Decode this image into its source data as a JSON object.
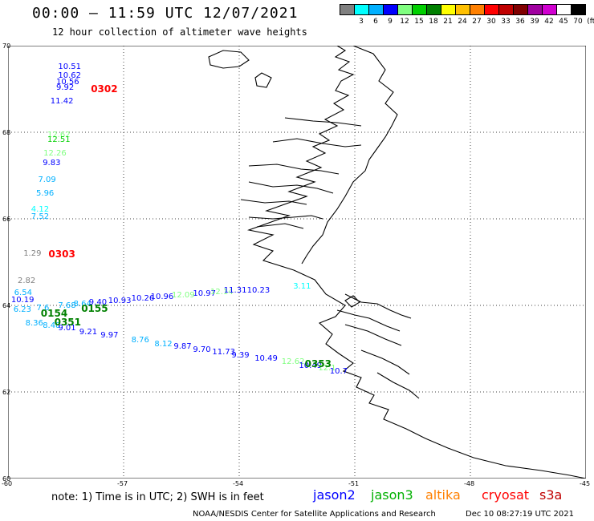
{
  "header": {
    "title": "00:00 – 11:59 UTC 12/07/2021",
    "subtitle": "12 hour collection of altimeter wave heights"
  },
  "scale": {
    "colors": [
      "#808080",
      "#00ffff",
      "#00b0ff",
      "#0000ff",
      "#80ff80",
      "#00d000",
      "#008000",
      "#ffff00",
      "#ffc000",
      "#ff8000",
      "#ff0000",
      "#c00000",
      "#800000",
      "#a000a0",
      "#d000d0",
      "#ffffff",
      "#000000"
    ],
    "labels": [
      "3",
      "6",
      "9",
      "12",
      "15",
      "18",
      "21",
      "24",
      "27",
      "30",
      "33",
      "36",
      "39",
      "42",
      "45",
      "70",
      "(ft)"
    ]
  },
  "map": {
    "lat_ticks": [
      "70",
      "68",
      "66",
      "64",
      "62",
      "60"
    ],
    "lon_ticks": [
      "-60",
      "-57",
      "-54",
      "-51",
      "-48",
      "-45"
    ],
    "extent": {
      "lon": [
        -60,
        -45
      ],
      "lat": [
        60,
        70
      ]
    }
  },
  "observations": [
    {
      "v": "10.51",
      "c": "#0000ff",
      "lon": -58.7,
      "lat": 69.5
    },
    {
      "v": "10.62",
      "c": "#0000ff",
      "lon": -58.7,
      "lat": 69.3
    },
    {
      "v": "10.56",
      "c": "#0000ff",
      "lon": -58.75,
      "lat": 69.15
    },
    {
      "v": "9.92",
      "c": "#0000ff",
      "lon": -58.75,
      "lat": 69.02
    },
    {
      "v": "11.42",
      "c": "#0000ff",
      "lon": -58.9,
      "lat": 68.7
    },
    {
      "v": "12.62",
      "c": "#80ff80",
      "lon": -58.98,
      "lat": 67.92
    },
    {
      "v": "12.51",
      "c": "#00d000",
      "lon": -58.98,
      "lat": 67.82
    },
    {
      "v": "12.26",
      "c": "#80ff80",
      "lon": -59.08,
      "lat": 67.5
    },
    {
      "v": "9.83",
      "c": "#0000ff",
      "lon": -59.1,
      "lat": 67.27
    },
    {
      "v": "7.09",
      "c": "#00b0ff",
      "lon": -59.22,
      "lat": 66.88
    },
    {
      "v": "5.96",
      "c": "#00b0ff",
      "lon": -59.27,
      "lat": 66.57
    },
    {
      "v": "4.12",
      "c": "#00ffff",
      "lon": -59.4,
      "lat": 66.2
    },
    {
      "v": "7.52",
      "c": "#00b0ff",
      "lon": -59.4,
      "lat": 66.03
    },
    {
      "v": "1.29",
      "c": "#808080",
      "lon": -59.6,
      "lat": 65.18
    },
    {
      "v": "2.82",
      "c": "#808080",
      "lon": -59.75,
      "lat": 64.55
    },
    {
      "v": "6.54",
      "c": "#00b0ff",
      "lon": -59.84,
      "lat": 64.28
    },
    {
      "v": "10.19",
      "c": "#0000ff",
      "lon": -59.92,
      "lat": 64.12
    },
    {
      "v": "6.23",
      "c": "#00b0ff",
      "lon": -59.86,
      "lat": 63.88
    },
    {
      "v": "7.6",
      "c": "#00b0ff",
      "lon": -59.26,
      "lat": 63.92
    },
    {
      "v": "7.68",
      "c": "#00b0ff",
      "lon": -58.7,
      "lat": 63.98
    },
    {
      "v": "8.64",
      "c": "#00b0ff",
      "lon": -58.3,
      "lat": 64.02
    },
    {
      "v": "9.40",
      "c": "#0000ff",
      "lon": -57.9,
      "lat": 64.06
    },
    {
      "v": "10.93",
      "c": "#0000ff",
      "lon": -57.4,
      "lat": 64.1
    },
    {
      "v": "10.26",
      "c": "#0000ff",
      "lon": -56.8,
      "lat": 64.14
    },
    {
      "v": "10.96",
      "c": "#0000ff",
      "lon": -56.3,
      "lat": 64.18
    },
    {
      "v": "12.09",
      "c": "#80ff80",
      "lon": -55.75,
      "lat": 64.22
    },
    {
      "v": "10.97",
      "c": "#0000ff",
      "lon": -55.2,
      "lat": 64.26
    },
    {
      "v": "12.14",
      "c": "#80ff80",
      "lon": -54.75,
      "lat": 64.3
    },
    {
      "v": "11.31",
      "c": "#0000ff",
      "lon": -54.4,
      "lat": 64.34
    },
    {
      "v": "10.23",
      "c": "#0000ff",
      "lon": -53.8,
      "lat": 64.34
    },
    {
      "v": "3.11",
      "c": "#00ffff",
      "lon": -52.6,
      "lat": 64.42
    },
    {
      "v": "8.36",
      "c": "#00b0ff",
      "lon": -59.55,
      "lat": 63.57
    },
    {
      "v": "8.48",
      "c": "#00b0ff",
      "lon": -59.1,
      "lat": 63.52
    },
    {
      "v": "9.01",
      "c": "#0000ff",
      "lon": -58.7,
      "lat": 63.46
    },
    {
      "v": "9.21",
      "c": "#0000ff",
      "lon": -58.15,
      "lat": 63.37
    },
    {
      "v": "9.97",
      "c": "#0000ff",
      "lon": -57.6,
      "lat": 63.3
    },
    {
      "v": "8.76",
      "c": "#00b0ff",
      "lon": -56.8,
      "lat": 63.18
    },
    {
      "v": "8.12",
      "c": "#00b0ff",
      "lon": -56.2,
      "lat": 63.1
    },
    {
      "v": "9.87",
      "c": "#0000ff",
      "lon": -55.7,
      "lat": 63.03
    },
    {
      "v": "9.70",
      "c": "#0000ff",
      "lon": -55.2,
      "lat": 62.97
    },
    {
      "v": "11.73",
      "c": "#0000ff",
      "lon": -54.7,
      "lat": 62.9
    },
    {
      "v": "9.39",
      "c": "#0000ff",
      "lon": -54.2,
      "lat": 62.84
    },
    {
      "v": "10.49",
      "c": "#0000ff",
      "lon": -53.6,
      "lat": 62.76
    },
    {
      "v": "12.62",
      "c": "#80ff80",
      "lon": -52.9,
      "lat": 62.68
    },
    {
      "v": "10.49",
      "c": "#0000ff",
      "lon": -52.45,
      "lat": 62.6
    },
    {
      "v": "12.1",
      "c": "#80ff80",
      "lon": -51.95,
      "lat": 62.54
    },
    {
      "v": "10.7",
      "c": "#0000ff",
      "lon": -51.65,
      "lat": 62.47
    }
  ],
  "passes": [
    {
      "id": "0302",
      "c": "#ff0000",
      "lon": -57.85,
      "lat": 69.0
    },
    {
      "id": "0303",
      "c": "#ff0000",
      "lon": -58.95,
      "lat": 65.18
    },
    {
      "id": "0154",
      "c": "#008000",
      "lon": -59.15,
      "lat": 63.82
    },
    {
      "id": "0155",
      "c": "#008000",
      "lon": -58.1,
      "lat": 63.93
    },
    {
      "id": "0351",
      "c": "#008000",
      "lon": -58.8,
      "lat": 63.61
    },
    {
      "id": "0353",
      "c": "#008000",
      "lon": -52.3,
      "lat": 62.64
    }
  ],
  "footer": {
    "note": "note: 1) Time is in UTC; 2) SWH is in feet",
    "legend": [
      {
        "name": "jason2",
        "color": "#0000ff"
      },
      {
        "name": "jason3",
        "color": "#00b000"
      },
      {
        "name": "altika",
        "color": "#ff8000"
      },
      {
        "name": "cryosat",
        "color": "#ff0000"
      },
      {
        "name": "s3a",
        "color": "#c00000"
      }
    ],
    "credit": "NOAA/NESDIS Center for Satellite Applications and Research",
    "timestamp": "Dec 10 08:27:19 UTC 2021"
  }
}
